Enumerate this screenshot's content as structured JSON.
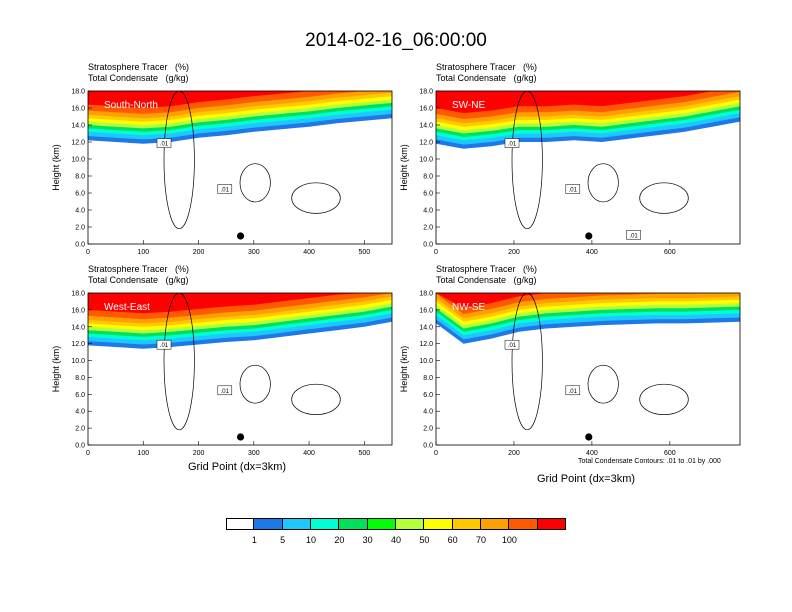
{
  "title": "2014-02-16_06:00:00",
  "header_line1": "Stratosphere Tracer   (%)",
  "header_line2": "Total Condensate   (g/kg)",
  "colorbar": {
    "labels": [
      "1",
      "5",
      "10",
      "20",
      "30",
      "40",
      "50",
      "60",
      "70",
      "100"
    ],
    "colors": [
      "#ffffff",
      "#1f78e8",
      "#1ec8ff",
      "#00ffd2",
      "#00e15a",
      "#00ff00",
      "#b4ff3c",
      "#ffff00",
      "#ffc800",
      "#ffa000",
      "#ff5a00",
      "#ff0000"
    ]
  },
  "footnote": "Total Condensate Contours: .01 to .01 by .000",
  "chart_data": [
    {
      "type": "heatmap",
      "label": "South-North",
      "xlabel": "",
      "ylabel": "Height (km)",
      "xlim": [
        0,
        550
      ],
      "ylim": [
        0,
        18
      ],
      "xticks": [
        "0",
        "100",
        "200",
        "300",
        "400",
        "500"
      ],
      "yticks": [
        "0.0",
        "2.0",
        "4.0",
        "6.0",
        "8.0",
        "10.0",
        "12.0",
        "14.0",
        "16.0",
        "18.0"
      ],
      "marker_x": 276,
      "tracer_bottom_km": [
        12.2,
        12.0,
        11.8,
        12.0,
        12.5,
        12.8,
        13.2,
        13.5,
        13.8,
        14.2,
        14.5,
        14.8
      ],
      "contour_labels": [
        ".01",
        ".01"
      ]
    },
    {
      "type": "heatmap",
      "label": "SW-NE",
      "xlabel": "",
      "ylabel": "Height (km)",
      "xlim": [
        0,
        780
      ],
      "ylim": [
        0,
        18
      ],
      "xticks": [
        "0",
        "200",
        "400",
        "600"
      ],
      "yticks": [
        "0.0",
        "2.0",
        "4.0",
        "6.0",
        "8.0",
        "10.0",
        "12.0",
        "14.0",
        "16.0",
        "18.0"
      ],
      "marker_x": 392,
      "tracer_bottom_km": [
        11.8,
        11.2,
        11.5,
        12.0,
        12.0,
        12.2,
        12.0,
        12.4,
        12.8,
        13.2,
        13.8,
        14.4
      ],
      "contour_labels": [
        ".01",
        ".01",
        ".01"
      ]
    },
    {
      "type": "heatmap",
      "label": "West-East",
      "xlabel": "Grid Point (dx=3km)",
      "ylabel": "Height (km)",
      "xlim": [
        0,
        550
      ],
      "ylim": [
        0,
        18
      ],
      "xticks": [
        "0",
        "100",
        "200",
        "300",
        "400",
        "500"
      ],
      "yticks": [
        "0.0",
        "2.0",
        "4.0",
        "6.0",
        "8.0",
        "10.0",
        "12.0",
        "14.0",
        "16.0",
        "18.0"
      ],
      "marker_x": 276,
      "tracer_bottom_km": [
        11.8,
        11.6,
        11.4,
        11.6,
        11.9,
        12.2,
        12.4,
        12.8,
        13.2,
        13.6,
        14.0,
        14.6
      ],
      "contour_labels": [
        ".01",
        ".01"
      ]
    },
    {
      "type": "heatmap",
      "label": "NW-SE",
      "xlabel": "Grid Point (dx=3km)",
      "ylabel": "Height (km)",
      "xlim": [
        0,
        780
      ],
      "ylim": [
        0,
        18
      ],
      "xticks": [
        "0",
        "200",
        "400",
        "600"
      ],
      "yticks": [
        "0.0",
        "2.0",
        "4.0",
        "6.0",
        "8.0",
        "10.0",
        "12.0",
        "14.0",
        "16.0",
        "18.0"
      ],
      "marker_x": 392,
      "tracer_bottom_km": [
        14.4,
        12.0,
        12.6,
        13.4,
        13.8,
        14.0,
        14.2,
        14.3,
        14.4,
        14.4,
        14.5,
        14.6
      ],
      "contour_labels": [
        ".01",
        ".01"
      ]
    }
  ]
}
